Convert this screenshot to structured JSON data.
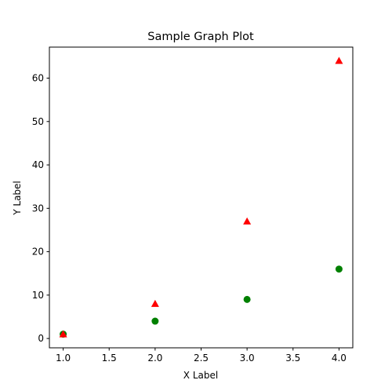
{
  "chart_data": {
    "type": "scatter",
    "title": "Sample Graph Plot",
    "xlabel": "X Label",
    "ylabel": "Y Label",
    "xlim": [
      0.85,
      4.15
    ],
    "ylim": [
      -2.15,
      67.15
    ],
    "xticks": [
      1.0,
      1.5,
      2.0,
      2.5,
      3.0,
      3.5,
      4.0
    ],
    "xtick_labels": [
      "1.0",
      "1.5",
      "2.0",
      "2.5",
      "3.0",
      "3.5",
      "4.0"
    ],
    "yticks": [
      0,
      10,
      20,
      30,
      40,
      50,
      60
    ],
    "ytick_labels": [
      "0",
      "10",
      "20",
      "30",
      "40",
      "50",
      "60"
    ],
    "grid": false,
    "series": [
      {
        "marker": "circle",
        "color": "#008000",
        "x": [
          1,
          2,
          3,
          4
        ],
        "y": [
          1,
          4,
          9,
          16
        ]
      },
      {
        "marker": "triangle",
        "color": "#ff0000",
        "x": [
          1,
          2,
          3,
          4
        ],
        "y": [
          1,
          8,
          27,
          64
        ]
      }
    ]
  }
}
